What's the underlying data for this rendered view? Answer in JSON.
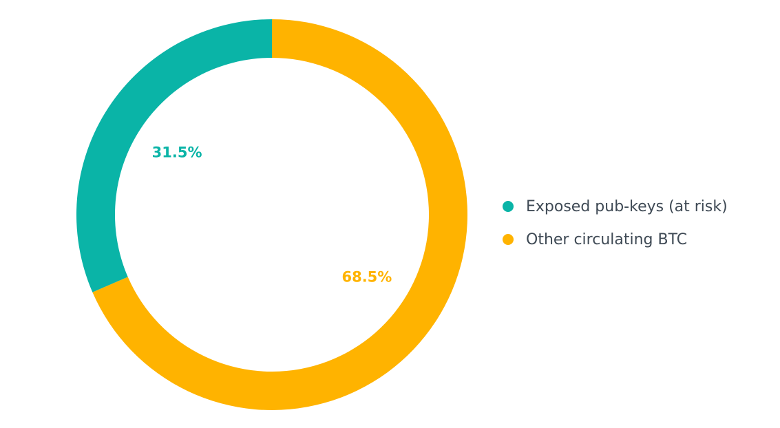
{
  "chart_data": {
    "type": "pie",
    "donut": true,
    "categories": [
      "Exposed pub-keys (at risk)",
      "Other circulating BTC"
    ],
    "values": [
      31.5,
      68.5
    ],
    "value_labels": [
      "31.5%",
      "68.5%"
    ],
    "colors": [
      "#0ab4a7",
      "#ffb300"
    ],
    "legend_placement": "right"
  }
}
